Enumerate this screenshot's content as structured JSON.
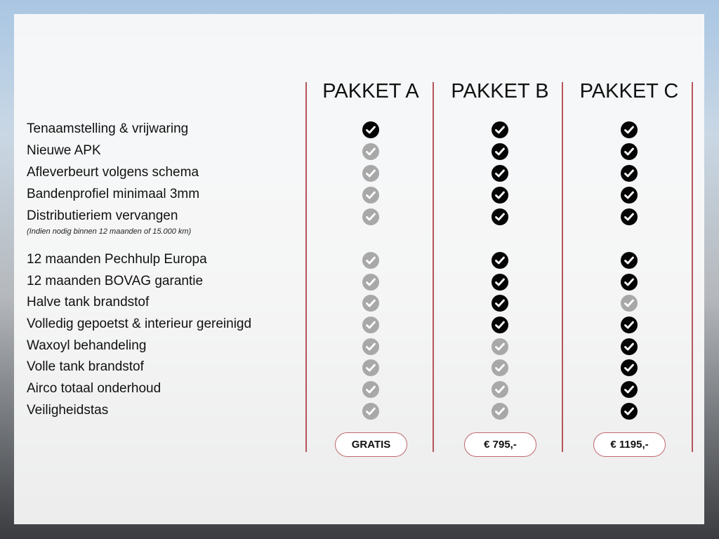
{
  "packages": [
    {
      "name": "PAKKET A",
      "price": "GRATIS"
    },
    {
      "name": "PAKKET B",
      "price": "€ 795,-"
    },
    {
      "name": "PAKKET C",
      "price": "€ 1195,-"
    }
  ],
  "features": [
    {
      "label": "Tenaamstelling & vrijwaring",
      "included": [
        true,
        true,
        true
      ]
    },
    {
      "label": "Nieuwe APK",
      "included": [
        false,
        true,
        true
      ]
    },
    {
      "label": "Afleverbeurt volgens schema",
      "included": [
        false,
        true,
        true
      ]
    },
    {
      "label": "Bandenprofiel minimaal 3mm",
      "included": [
        false,
        true,
        true
      ]
    },
    {
      "label": "Distributieriem vervangen",
      "included": [
        false,
        true,
        true
      ]
    },
    {
      "label": "12 maanden Pechhulp Europa",
      "included": [
        false,
        true,
        true
      ]
    },
    {
      "label": "12 maanden BOVAG garantie",
      "included": [
        false,
        true,
        true
      ]
    },
    {
      "label": "Halve tank brandstof",
      "included": [
        false,
        true,
        false
      ]
    },
    {
      "label": "Volledig gepoetst & interieur gereinigd",
      "included": [
        false,
        true,
        true
      ]
    },
    {
      "label": "Waxoyl behandeling",
      "included": [
        false,
        false,
        true
      ]
    },
    {
      "label": "Volle tank brandstof",
      "included": [
        false,
        false,
        true
      ]
    },
    {
      "label": "Airco totaal onderhoud",
      "included": [
        false,
        false,
        true
      ]
    },
    {
      "label": "Veiligheidstas",
      "included": [
        false,
        false,
        true
      ]
    }
  ],
  "distributie_note": "(Indien nodig binnen 12 maanden of 15.000 km)",
  "colors": {
    "accent": "#b5555b",
    "check_on": "#050505",
    "check_off": "#a8a8a8"
  }
}
